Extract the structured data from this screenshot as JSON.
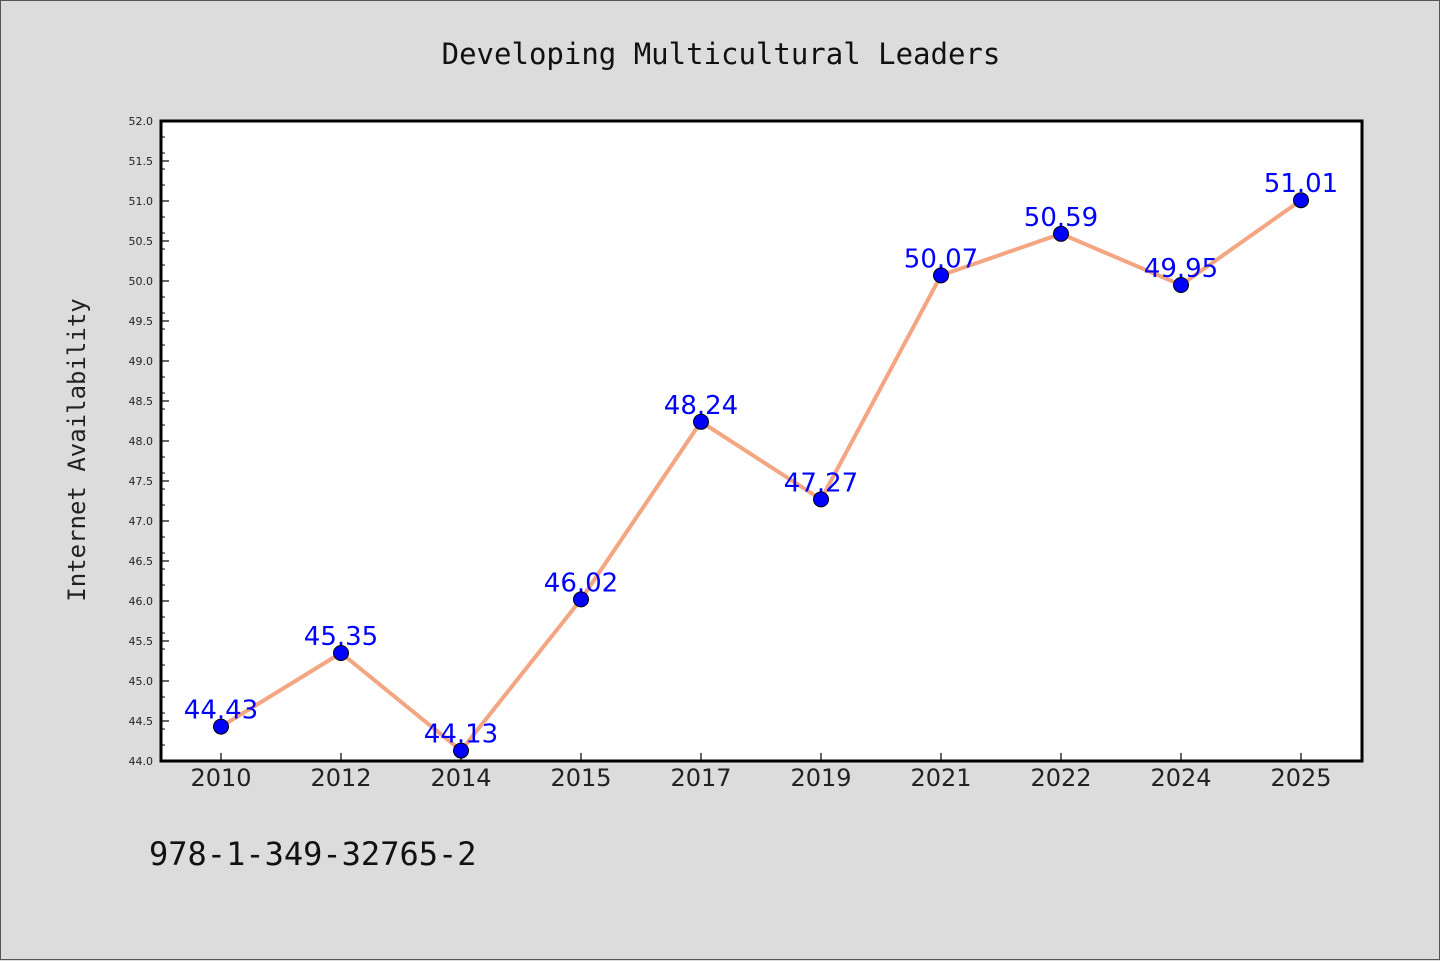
{
  "chart_data": {
    "type": "line",
    "title": "Developing Multicultural Leaders",
    "xlabel": "",
    "ylabel": "Internet Availability",
    "categories": [
      "2010",
      "2012",
      "2014",
      "2015",
      "2017",
      "2019",
      "2021",
      "2022",
      "2024",
      "2025"
    ],
    "values": [
      44.43,
      45.35,
      44.13,
      46.02,
      48.24,
      47.27,
      50.07,
      50.59,
      49.95,
      51.01
    ],
    "data_labels": [
      "44.43",
      "45.35",
      "44.13",
      "46.02",
      "48.24",
      "47.27",
      "50.07",
      "50.59",
      "49.95",
      "51.01"
    ],
    "ylim": [
      44.0,
      52.0
    ],
    "yticks": [
      "44.0",
      "44.5",
      "45.0",
      "45.5",
      "46.0",
      "46.5",
      "47.0",
      "47.5",
      "48.0",
      "48.5",
      "49.0",
      "49.5",
      "50.0",
      "50.5",
      "51.0",
      "51.5",
      "52.0"
    ],
    "grid": false,
    "legend": "none",
    "line_color": "#f4a582",
    "marker_color": "#0000ff",
    "label_color": "#0000ff"
  },
  "footer": {
    "isbn": "978-1-349-32765-2"
  }
}
